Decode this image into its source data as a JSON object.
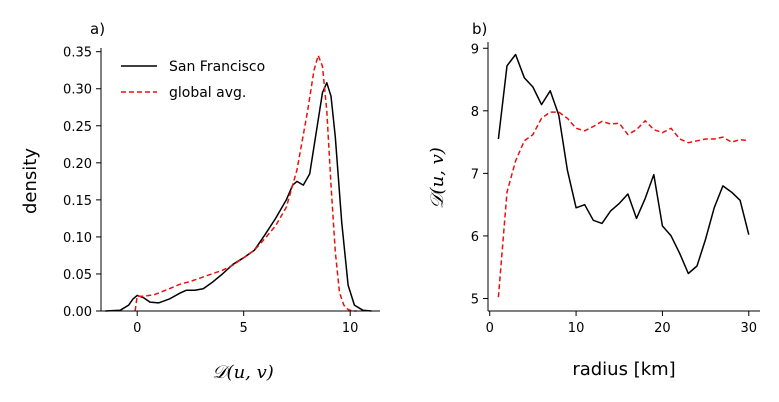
{
  "chart_data": [
    {
      "panel": "a)",
      "type": "line",
      "xlabel": "𝒟(u, v)",
      "ylabel": "density",
      "xlim": [
        -1.7,
        11.4
      ],
      "ylim": [
        0,
        0.355
      ],
      "xticks": [
        0,
        5,
        10
      ],
      "yticks": [
        0.0,
        0.05,
        0.1,
        0.15,
        0.2,
        0.25,
        0.3,
        0.35
      ],
      "ytick_labels": [
        "0.00",
        "0.05",
        "0.10",
        "0.15",
        "0.20",
        "0.25",
        "0.30",
        "0.35"
      ],
      "legend_position": "top-left",
      "series": [
        {
          "name": "San Francisco",
          "color": "#000000",
          "style": "solid",
          "x": [
            -1.5,
            -0.8,
            -0.4,
            -0.2,
            0.0,
            0.3,
            0.6,
            1.0,
            1.5,
            2.0,
            2.3,
            2.7,
            3.1,
            3.5,
            4.0,
            4.5,
            5.0,
            5.5,
            6.0,
            6.5,
            7.0,
            7.3,
            7.5,
            7.8,
            8.1,
            8.4,
            8.7,
            8.9,
            9.1,
            9.3,
            9.6,
            9.9,
            10.2,
            10.6,
            11.0
          ],
          "y": [
            0.0,
            0.001,
            0.008,
            0.016,
            0.021,
            0.018,
            0.012,
            0.011,
            0.016,
            0.024,
            0.028,
            0.028,
            0.03,
            0.038,
            0.05,
            0.063,
            0.072,
            0.082,
            0.103,
            0.125,
            0.15,
            0.17,
            0.175,
            0.17,
            0.185,
            0.24,
            0.295,
            0.308,
            0.29,
            0.235,
            0.12,
            0.035,
            0.008,
            0.001,
            0.0
          ]
        },
        {
          "name": "global avg.",
          "color": "#e8110f",
          "style": "dashed",
          "x": [
            -0.1,
            0.0,
            0.3,
            0.8,
            1.5,
            2.0,
            2.5,
            3.0,
            3.5,
            4.0,
            4.5,
            5.0,
            5.5,
            6.0,
            6.5,
            7.0,
            7.5,
            8.0,
            8.3,
            8.5,
            8.7,
            8.9,
            9.1,
            9.3,
            9.5,
            9.7,
            9.9,
            10.1,
            10.3
          ],
          "y": [
            0.0,
            0.02,
            0.02,
            0.022,
            0.03,
            0.036,
            0.04,
            0.045,
            0.05,
            0.055,
            0.062,
            0.072,
            0.082,
            0.098,
            0.115,
            0.14,
            0.19,
            0.27,
            0.325,
            0.345,
            0.33,
            0.27,
            0.17,
            0.08,
            0.025,
            0.008,
            0.002,
            0.0,
            0.0
          ]
        }
      ]
    },
    {
      "panel": "b)",
      "type": "line",
      "xlabel": "radius [km]",
      "ylabel": "𝒟(u, v)",
      "xlim": [
        -0.2,
        31.3
      ],
      "ylim": [
        4.8,
        9.1
      ],
      "xticks": [
        0,
        10,
        20,
        30
      ],
      "yticks": [
        5,
        6,
        7,
        8,
        9
      ],
      "series": [
        {
          "name": "San Francisco",
          "color": "#000000",
          "style": "solid",
          "x": [
            1,
            2,
            3,
            4,
            5,
            6,
            7,
            8,
            9,
            10,
            11,
            12,
            13,
            14,
            15,
            16,
            17,
            18,
            19,
            20,
            21,
            22,
            23,
            24,
            25,
            26,
            27,
            28,
            29,
            30
          ],
          "y": [
            7.55,
            8.72,
            8.9,
            8.53,
            8.38,
            8.1,
            8.32,
            7.93,
            7.05,
            6.45,
            6.5,
            6.25,
            6.2,
            6.4,
            6.52,
            6.67,
            6.28,
            6.6,
            6.98,
            6.16,
            6.0,
            5.72,
            5.4,
            5.52,
            5.95,
            6.45,
            6.8,
            6.7,
            6.57,
            6.02
          ]
        },
        {
          "name": "global avg.",
          "color": "#e8110f",
          "style": "dashed",
          "x": [
            1,
            2,
            3,
            4,
            5,
            6,
            7,
            8,
            9,
            10,
            11,
            12,
            13,
            14,
            15,
            16,
            17,
            18,
            19,
            20,
            21,
            22,
            23,
            24,
            25,
            26,
            27,
            28,
            29,
            30
          ],
          "y": [
            5.02,
            6.7,
            7.2,
            7.52,
            7.62,
            7.88,
            7.98,
            7.98,
            7.88,
            7.72,
            7.68,
            7.75,
            7.83,
            7.79,
            7.8,
            7.62,
            7.7,
            7.84,
            7.7,
            7.65,
            7.72,
            7.55,
            7.49,
            7.52,
            7.55,
            7.55,
            7.58,
            7.5,
            7.54,
            7.52
          ]
        }
      ]
    }
  ]
}
